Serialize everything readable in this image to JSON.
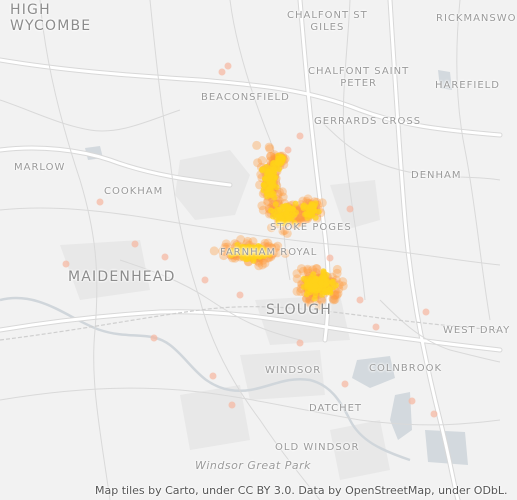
{
  "map": {
    "place_labels": [
      {
        "id": "high-wycombe",
        "text": "HIGH\nWYCOMBE",
        "size": "big"
      },
      {
        "id": "chalfont-st-giles",
        "text": "CHALFONT ST\nGILES",
        "size": "small"
      },
      {
        "id": "rickmansworth",
        "text": "RICKMANSWO",
        "size": "small"
      },
      {
        "id": "chalfont-saint-peter",
        "text": "CHALFONT SAINT\nPETER",
        "size": "small"
      },
      {
        "id": "harefield",
        "text": "HAREFIELD",
        "size": "small"
      },
      {
        "id": "beaconsfield",
        "text": "BEACONSFIELD",
        "size": "small"
      },
      {
        "id": "gerrards-cross",
        "text": "GERRARDS CROSS",
        "size": "small"
      },
      {
        "id": "marlow",
        "text": "MARLOW",
        "size": "small"
      },
      {
        "id": "cookham",
        "text": "COOKHAM",
        "size": "small"
      },
      {
        "id": "denham",
        "text": "DENHAM",
        "size": "small"
      },
      {
        "id": "stoke-poges",
        "text": "STOKE POGES",
        "size": "small"
      },
      {
        "id": "farnham-royal",
        "text": "FARNHAM ROYAL",
        "size": "small"
      },
      {
        "id": "maidenhead",
        "text": "MAIDENHEAD",
        "size": "big"
      },
      {
        "id": "slough",
        "text": "SLOUGH",
        "size": "big"
      },
      {
        "id": "west-drayton",
        "text": "WEST DRAY",
        "size": "small"
      },
      {
        "id": "windsor",
        "text": "WINDSOR",
        "size": "small"
      },
      {
        "id": "colnbrook",
        "text": "COLNBROOK",
        "size": "small"
      },
      {
        "id": "datchet",
        "text": "DATCHET",
        "size": "small"
      },
      {
        "id": "old-windsor",
        "text": "OLD WINDSOR",
        "size": "small"
      },
      {
        "id": "windsor-great-park",
        "text": "Windsor Great Park",
        "size": "italic"
      }
    ],
    "attribution": "Map tiles by Carto, under CC BY 3.0. Data by OpenStreetMap, under ODbL.",
    "colors": {
      "background": "#f2f2f2",
      "road": "#ffffff",
      "road_casing": "#d6d6d6",
      "water": "#cfd6dc",
      "park": "#e6e6e6",
      "urban": "#e9e9e9",
      "heat_hot": "#ffd11a",
      "heat_warm": "#ff9a3c",
      "heat_outer": "#f7b6a0"
    }
  }
}
